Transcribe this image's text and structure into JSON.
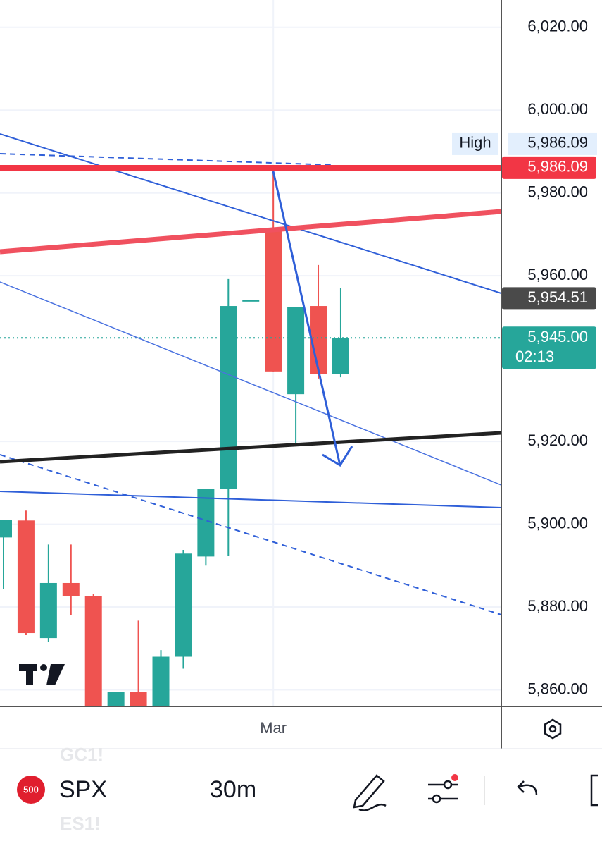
{
  "chart_data": {
    "type": "candlestick",
    "categories": [
      null,
      null,
      null,
      null,
      null,
      null,
      null,
      null,
      null,
      null,
      null,
      null,
      "Mar",
      null,
      null,
      null
    ],
    "open": [
      5896.8,
      5900.9,
      5872.5,
      5885.8,
      5882.7,
      5852,
      5859.5,
      5853,
      5868.0,
      5892.2,
      5908.6,
      5954.1,
      5971.6,
      5931.4,
      5952.7,
      5936.2
    ],
    "high": [
      5901.1,
      5903.3,
      5895.1,
      5895.1,
      5883.2,
      5859.5,
      5876.7,
      5869.6,
      5893.8,
      5908.6,
      5959.2,
      5954.1,
      5986.09,
      5952.4,
      5962.6,
      5957.1
    ],
    "low": [
      5884.4,
      5873.3,
      5871.6,
      5878.1,
      5850,
      5850,
      5850,
      5851,
      5865.1,
      5890.0,
      5892.4,
      5954.1,
      5936.9,
      5919.0,
      5935.2,
      5935.5
    ],
    "close": [
      5901.1,
      5873.7,
      5885.8,
      5882.7,
      5852,
      5859.5,
      5852,
      5868.0,
      5892.9,
      5908.6,
      5952.7,
      5954.1,
      5936.9,
      5952.4,
      5936.2,
      5945.0
    ],
    "up_color": "#26a69a",
    "down_color": "#ef5350",
    "ylim": [
      5856,
      6026.6
    ],
    "yticks": [
      {
        "value": 5860,
        "label": "5,860.00"
      },
      {
        "value": 5880,
        "label": "5,880.00"
      },
      {
        "value": 5900,
        "label": "5,900.00"
      },
      {
        "value": 5920,
        "label": "5,920.00"
      },
      {
        "value": 5960,
        "label": "5,960.00"
      },
      {
        "value": 5980,
        "label": "5,980.00"
      },
      {
        "value": 6000,
        "label": "6,000.00"
      },
      {
        "value": 6020,
        "label": "6,020.00"
      }
    ],
    "grid": true,
    "high_label": {
      "text": "High",
      "value": 5986.09,
      "label": "5,986.09"
    },
    "line_labels": [
      {
        "value": 5986.09,
        "label": "5,986.09",
        "color": "#f23645"
      },
      {
        "value": 5954.51,
        "label": "5,954.51",
        "color": "#4a4a4a"
      }
    ],
    "last_price": {
      "value": 5945.0,
      "label": "5,945.00",
      "countdown": "02:13",
      "color": "#26a69a"
    }
  },
  "toolbar": {
    "ghost_top": "GC1!",
    "badge": "500",
    "symbol": "SPX",
    "interval": "30m",
    "ghost_bottom": "ES1!"
  }
}
